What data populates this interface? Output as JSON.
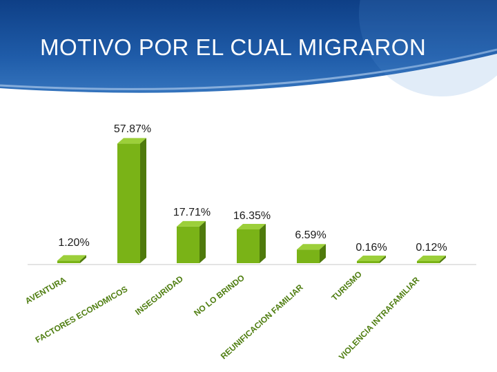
{
  "slide": {
    "title": "MOTIVO POR EL CUAL MIGRARON"
  },
  "colors": {
    "header_dark": "#0e3f86",
    "header_light": "#3b7bc3",
    "bar_front": "#7ab317",
    "bar_top": "#9ccf3a",
    "bar_side": "#4f7a0c",
    "category_text": "#4e7d0f"
  },
  "chart_data": {
    "type": "bar",
    "categories": [
      "AVENTURA",
      "FACTORES ECONOMICOS",
      "INSEGURIDAD",
      "NO LO BRINDO",
      "REUNIFICACION FAMILIAR",
      "TURISMO",
      "VIOLENCIA INTRAFAMILIAR"
    ],
    "values": [
      1.2,
      57.87,
      17.71,
      16.35,
      6.59,
      0.16,
      0.12
    ],
    "value_labels": [
      "1.20%",
      "57.87%",
      "17.71%",
      "16.35%",
      "6.59%",
      "0.16%",
      "0.12%"
    ],
    "title": "",
    "xlabel": "",
    "ylabel": "",
    "ylim": [
      0,
      58
    ],
    "grid": false,
    "legend": "none"
  }
}
